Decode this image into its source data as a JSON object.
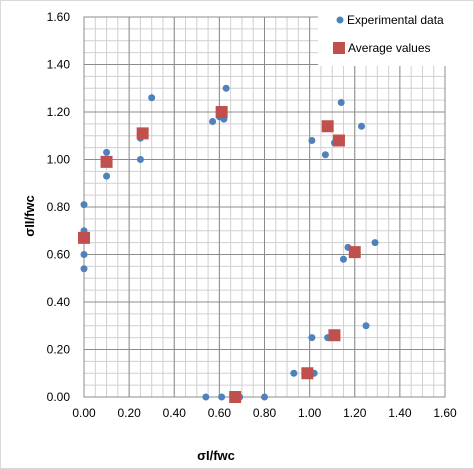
{
  "chart_data": {
    "type": "scatter",
    "title": "",
    "xlabel": "σI/fwc",
    "ylabel": "σII/fwc",
    "xlim": [
      0,
      1.6
    ],
    "ylim": [
      0,
      1.6
    ],
    "x_ticks": [
      "0.00",
      "0.20",
      "0.40",
      "0.60",
      "0.80",
      "1.00",
      "1.20",
      "1.40",
      "1.60"
    ],
    "y_ticks": [
      "0.00",
      "0.20",
      "0.40",
      "0.60",
      "0.80",
      "1.00",
      "1.20",
      "1.40",
      "1.60"
    ],
    "grid": true,
    "minor_grid_step": 0.05,
    "legend_position": "top-right",
    "series": [
      {
        "name": "Experimental data",
        "marker": "circle",
        "color": "#4F81BD",
        "points": [
          [
            0.0,
            0.81
          ],
          [
            0.0,
            0.7
          ],
          [
            0.0,
            0.6
          ],
          [
            0.0,
            0.54
          ],
          [
            0.1,
            1.03
          ],
          [
            0.1,
            0.93
          ],
          [
            0.25,
            1.09
          ],
          [
            0.25,
            1.0
          ],
          [
            0.3,
            1.26
          ],
          [
            0.57,
            1.16
          ],
          [
            0.6,
            1.18
          ],
          [
            0.62,
            1.17
          ],
          [
            0.63,
            1.3
          ],
          [
            1.01,
            1.08
          ],
          [
            1.07,
            1.02
          ],
          [
            1.11,
            1.07
          ],
          [
            1.14,
            1.24
          ],
          [
            1.23,
            1.14
          ],
          [
            1.15,
            0.58
          ],
          [
            1.17,
            0.63
          ],
          [
            1.19,
            0.61
          ],
          [
            1.29,
            0.65
          ],
          [
            1.01,
            0.25
          ],
          [
            1.08,
            0.25
          ],
          [
            1.1,
            0.26
          ],
          [
            1.25,
            0.3
          ],
          [
            0.93,
            0.1
          ],
          [
            0.98,
            0.1
          ],
          [
            1.02,
            0.1
          ],
          [
            0.54,
            0.0
          ],
          [
            0.61,
            0.0
          ],
          [
            0.69,
            0.0
          ],
          [
            0.8,
            0.0
          ]
        ]
      },
      {
        "name": "Average values",
        "marker": "square",
        "color": "#C0504D",
        "points": [
          [
            0.0,
            0.67
          ],
          [
            0.1,
            0.99
          ],
          [
            0.26,
            1.11
          ],
          [
            0.61,
            1.2
          ],
          [
            1.08,
            1.14
          ],
          [
            1.13,
            1.08
          ],
          [
            1.2,
            0.61
          ],
          [
            1.11,
            0.26
          ],
          [
            0.99,
            0.1
          ],
          [
            0.67,
            0.0
          ]
        ]
      }
    ]
  }
}
